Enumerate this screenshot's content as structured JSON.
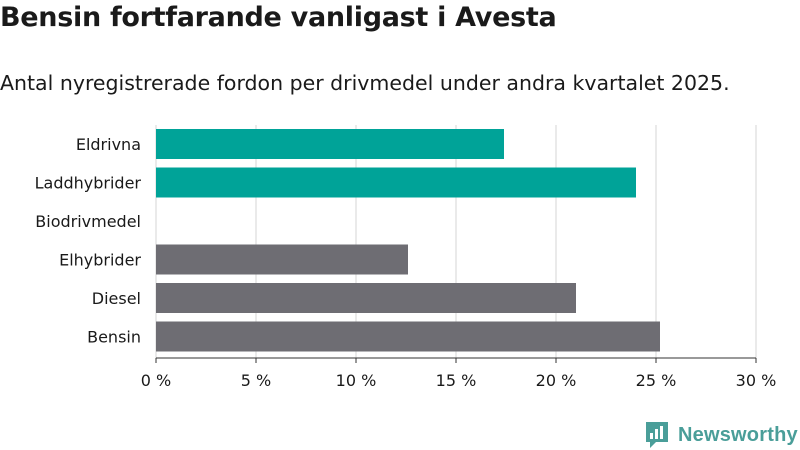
{
  "title": "Bensin fortfarande vanligast i Avesta",
  "subtitle": "Antal nyregistrerade fordon per drivmedel under andra kvartalet 2025.",
  "brand": "Newsworthy",
  "colors": {
    "accent": "#00a398",
    "neutral": "#6e6d73",
    "grid": "#dddddd",
    "text": "#1a1a1a",
    "brand": "#4a9e99"
  },
  "chart_data": {
    "type": "bar",
    "orientation": "horizontal",
    "categories": [
      "Eldrivna",
      "Laddhybrider",
      "Biodrivmedel",
      "Elhybrider",
      "Diesel",
      "Bensin"
    ],
    "values": [
      17.4,
      24.0,
      0,
      12.6,
      21.0,
      25.2
    ],
    "highlight": [
      true,
      true,
      true,
      false,
      false,
      false
    ],
    "xlim": [
      0,
      30
    ],
    "xticks": [
      0,
      5,
      10,
      15,
      20,
      25,
      30
    ],
    "xtick_labels": [
      "0 %",
      "5 %",
      "10 %",
      "15 %",
      "20 %",
      "25 %",
      "30 %"
    ],
    "grid": true
  }
}
